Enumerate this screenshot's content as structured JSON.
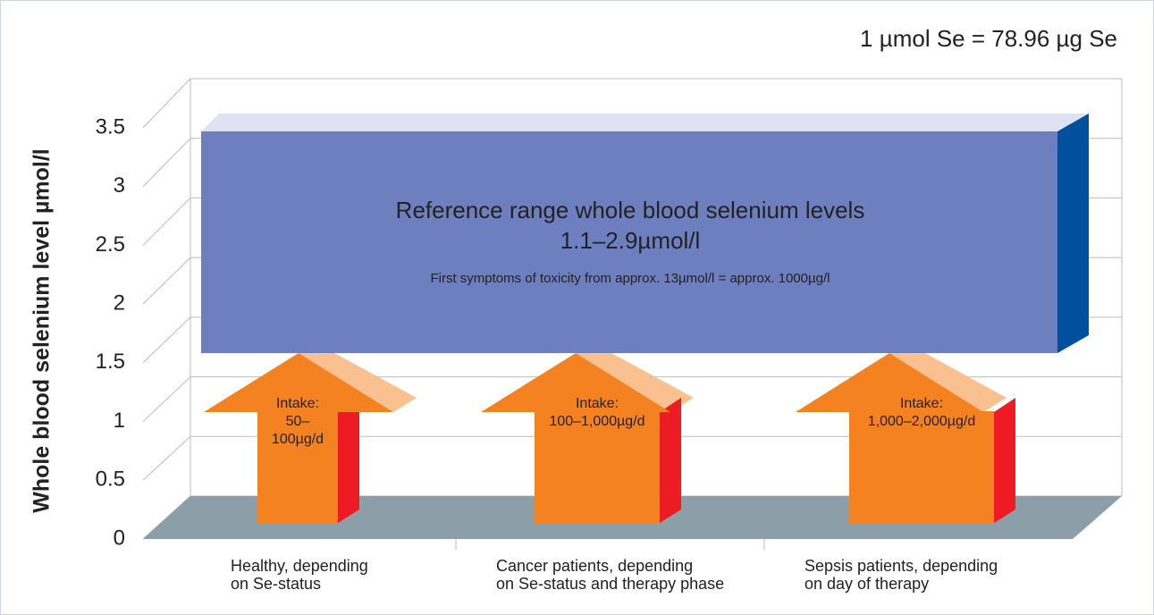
{
  "chart_data": {
    "type": "infographic",
    "annotation": "1 µmol Se = 78.96 µg Se",
    "y_label": "Whole blood selenium level µmol/l",
    "ylim": [
      0,
      3.5
    ],
    "yticks": [
      0,
      0.5,
      1,
      1.5,
      2,
      2.5,
      3,
      3.5
    ],
    "grid": true,
    "reference_box": {
      "title": "Reference range whole blood selenium levels",
      "range": "1.1–2.9µmol/l",
      "note": "First symptoms of toxicity from approx. 13µmol/l = approx. 1000µg/l",
      "color": "#6d7fbf"
    },
    "arrow_color": "#f58220",
    "arrows": [
      [
        "Intake:",
        "50–",
        "100µg/d"
      ],
      [
        "Intake:",
        "100–1,000µg/d"
      ],
      [
        "Intake:",
        "1,000–2,000µg/d"
      ]
    ],
    "categories": [
      [
        "Healthy, depending",
        "on Se-status"
      ],
      [
        "Cancer patients, depending",
        "on Se-status and therapy phase"
      ],
      [
        "Sepsis patients, depending",
        "on day of therapy"
      ]
    ]
  }
}
